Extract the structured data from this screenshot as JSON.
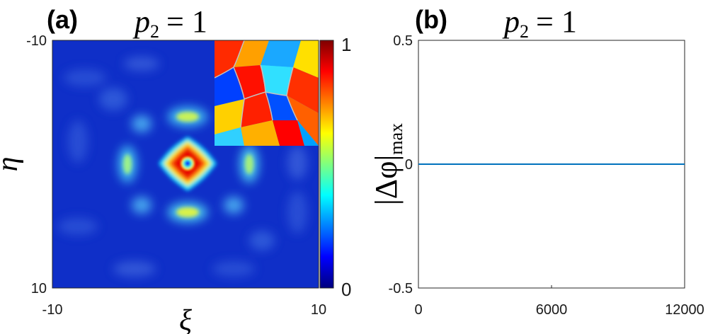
{
  "chart_data": [
    {
      "type": "heatmap",
      "panel_label": "(a)",
      "title": {
        "var": "p",
        "sub": "2",
        "eq": "= 1"
      },
      "xlabel": "ξ",
      "ylabel": "η",
      "x_ticks": [
        "-10",
        "10"
      ],
      "y_ticks": [
        "-10",
        "10"
      ],
      "xlim": [
        -10,
        10
      ],
      "ylim": [
        -10,
        10
      ],
      "colorbar": {
        "min": 0,
        "max": 1,
        "tick_labels": [
          "1",
          "0"
        ],
        "colormap": "jet"
      },
      "inset": {
        "description_kind": "phase",
        "colormap": "jet"
      }
    },
    {
      "type": "line",
      "panel_label": "(b)",
      "title": {
        "var": "p",
        "sub": "2",
        "eq": "= 1"
      },
      "ylabel": {
        "main": "|Δφ|",
        "sub": "max"
      },
      "xlim": [
        0,
        12000
      ],
      "ylim": [
        -0.5,
        0.5
      ],
      "x_ticks": [
        "0",
        "6000",
        "12000"
      ],
      "y_ticks": [
        "0.5",
        "0",
        "-0.5"
      ],
      "series": [
        {
          "x": [
            0,
            12000
          ],
          "y": [
            0,
            0
          ],
          "color": "#0072BD"
        }
      ]
    }
  ]
}
